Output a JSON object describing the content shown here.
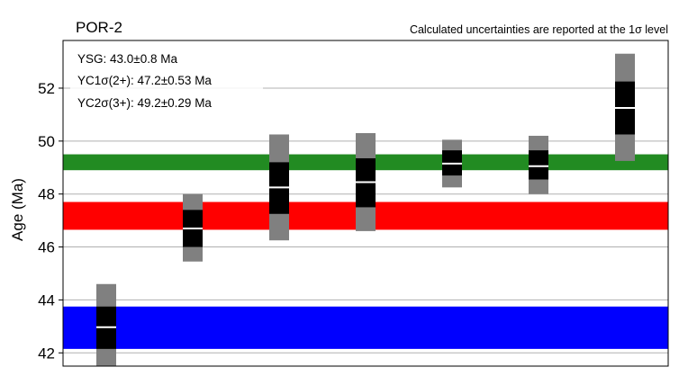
{
  "chart_data": {
    "type": "range",
    "title": "POR-2",
    "note": "Calculated uncertainties are reported at the 1σ level",
    "ylabel": "Age (Ma)",
    "xlabel": "",
    "ylim": [
      41.5,
      53.8
    ],
    "yticks": [
      42,
      44,
      46,
      48,
      50,
      52
    ],
    "grid": "horizontal",
    "annotations": [
      "YSG: 43.0±0.8 Ma",
      "YC1σ(2+): 47.2±0.53 Ma",
      "YC2σ(3+): 49.2±0.29 Ma"
    ],
    "bands": [
      {
        "low": 42.15,
        "high": 43.75,
        "color": "#0000ff"
      },
      {
        "low": 46.65,
        "high": 47.7,
        "color": "#ff0000"
      },
      {
        "low": 48.9,
        "high": 49.5,
        "color": "#228b22"
      }
    ],
    "samples": [
      {
        "mean": 42.97,
        "one_sigma": [
          42.15,
          43.75
        ],
        "two_sigma": [
          41.4,
          44.6
        ]
      },
      {
        "mean": 46.7,
        "one_sigma": [
          46.0,
          47.4
        ],
        "two_sigma": [
          45.45,
          48.0
        ]
      },
      {
        "mean": 48.25,
        "one_sigma": [
          47.25,
          49.2
        ],
        "two_sigma": [
          46.25,
          50.25
        ]
      },
      {
        "mean": 48.45,
        "one_sigma": [
          47.5,
          49.35
        ],
        "two_sigma": [
          46.6,
          50.3
        ]
      },
      {
        "mean": 49.15,
        "one_sigma": [
          48.7,
          49.65
        ],
        "two_sigma": [
          48.25,
          50.05
        ]
      },
      {
        "mean": 49.05,
        "one_sigma": [
          48.55,
          49.65
        ],
        "two_sigma": [
          48.0,
          50.2
        ]
      },
      {
        "mean": 51.25,
        "one_sigma": [
          50.25,
          52.25
        ],
        "two_sigma": [
          49.25,
          53.3
        ]
      }
    ],
    "colors": {
      "two_sigma": "#808080",
      "one_sigma": "#000000",
      "mean": "#ffffff",
      "grid": "#b0b0b0"
    }
  }
}
